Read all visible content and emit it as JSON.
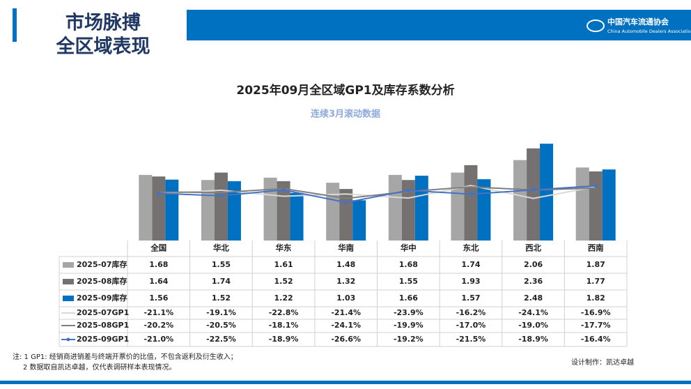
{
  "header": {
    "title_lines": [
      "市场脉搏",
      "全区域表现"
    ],
    "logo": "中国汽车流通协会",
    "logo_sub": "China Automobile Dealers Association"
  },
  "chart_data": {
    "type": "bar",
    "title": "2025年09月全区域GP1及库存系数分析",
    "subtitle": "连续3月滚动数据",
    "categories": [
      "全国",
      "华北",
      "华东",
      "华南",
      "华中",
      "东北",
      "西北",
      "西南"
    ],
    "ylim": [
      0,
      2.5
    ],
    "y2lim": [
      -50,
      10
    ],
    "series": [
      {
        "name": "2025-07库存",
        "type": "bar",
        "color": "#a6a6a6",
        "values": [
          1.68,
          1.55,
          1.61,
          1.48,
          1.68,
          1.74,
          2.06,
          1.87
        ]
      },
      {
        "name": "2025-08库存",
        "type": "bar",
        "color": "#767171",
        "values": [
          1.64,
          1.74,
          1.52,
          1.32,
          1.55,
          1.93,
          2.36,
          1.77
        ]
      },
      {
        "name": "2025-09库存",
        "type": "bar",
        "color": "#0070c0",
        "values": [
          1.56,
          1.52,
          1.22,
          1.03,
          1.66,
          1.57,
          2.48,
          1.82
        ]
      },
      {
        "name": "2025-07GP1",
        "type": "line",
        "axis": "y2",
        "color": "#d9d9d9",
        "marker": false,
        "values": [
          -21.1,
          -19.1,
          -22.8,
          -21.4,
          -23.9,
          -16.2,
          -24.1,
          -16.9
        ],
        "value_labels": [
          "-21.1%",
          "-19.1%",
          "-22.8%",
          "-21.4%",
          "-23.9%",
          "-16.2%",
          "-24.1%",
          "-16.9%"
        ]
      },
      {
        "name": "2025-08GP1",
        "type": "line",
        "axis": "y2",
        "color": "#7f7f7f",
        "marker": false,
        "values": [
          -20.2,
          -20.5,
          -18.1,
          -24.1,
          -19.9,
          -17.0,
          -19.0,
          -17.7
        ],
        "value_labels": [
          "-20.2%",
          "-20.5%",
          "-18.1%",
          "-24.1%",
          "-19.9%",
          "-17.0%",
          "-19.0%",
          "-17.7%"
        ]
      },
      {
        "name": "2025-09GP1",
        "type": "line",
        "axis": "y2",
        "color": "#4472c4",
        "marker": true,
        "values": [
          -21.0,
          -22.5,
          -18.9,
          -26.6,
          -19.2,
          -21.5,
          -18.9,
          -16.4
        ],
        "value_labels": [
          "-21.0%",
          "-22.5%",
          "-18.9%",
          "-26.6%",
          "-19.2%",
          "-21.5%",
          "-18.9%",
          "-16.4%"
        ]
      }
    ]
  },
  "notes": [
    "注: 1  GP1: 经销商进销差与终端开票价的比值，不包含返利及衍生收入；",
    "2 数据取自凯达卓越，仅代表调研样本表现情况。"
  ],
  "credit": "设计制作：凯达卓越"
}
